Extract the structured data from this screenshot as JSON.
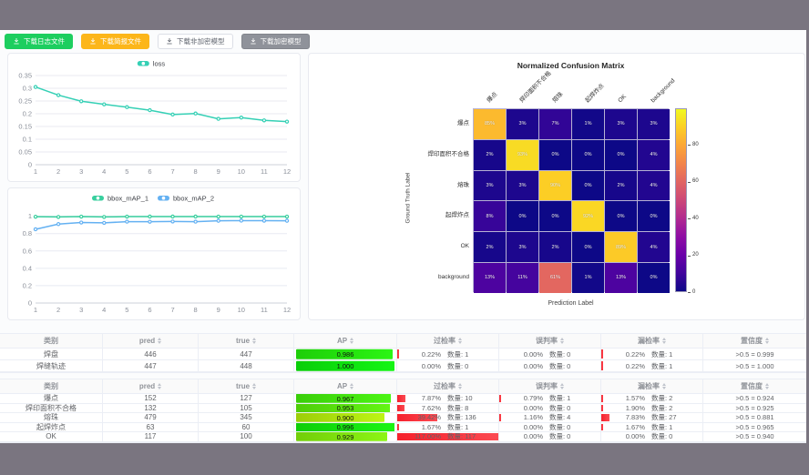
{
  "window": {
    "backdrop_color": "#7a7580",
    "content_bg": "#ffffff"
  },
  "toolbar": {
    "buttons": [
      {
        "name": "download-log-button",
        "label": "下载日志文件",
        "style": "success",
        "color": "#1dce5f",
        "icon": "download-icon"
      },
      {
        "name": "download-report-button",
        "label": "下载简报文件",
        "style": "warning",
        "color": "#fcb61a",
        "icon": "download-icon"
      },
      {
        "name": "download-unencrypted-model-button",
        "label": "下载非加密模型",
        "style": "plain",
        "color": "#ffffff",
        "icon": "download-icon"
      },
      {
        "name": "download-encrypted-model-button",
        "label": "下载加密模型",
        "style": "info",
        "color": "#8f929a",
        "icon": "download-icon"
      }
    ]
  },
  "chart_data": [
    {
      "type": "line",
      "title": "",
      "legend": [
        "loss"
      ],
      "legend_position": "top",
      "grid": true,
      "x": [
        1,
        2,
        3,
        4,
        5,
        6,
        7,
        8,
        9,
        10,
        11,
        12
      ],
      "series": [
        {
          "name": "loss",
          "color": "#35d0b5",
          "values": [
            0.305,
            0.273,
            0.249,
            0.237,
            0.226,
            0.214,
            0.197,
            0.201,
            0.18,
            0.185,
            0.174,
            0.169
          ]
        }
      ],
      "ylim": [
        0,
        0.35
      ],
      "y_ticks": [
        0,
        0.05,
        0.1,
        0.15,
        0.2,
        0.25,
        0.3,
        0.35
      ],
      "y_tick_labels": [
        "0",
        "0.05",
        "0.1",
        "0.15",
        "0.2",
        "0.25",
        "0.3",
        "0.35"
      ]
    },
    {
      "type": "line",
      "title": "",
      "legend": [
        "bbox_mAP_1",
        "bbox_mAP_2"
      ],
      "legend_position": "top",
      "grid": true,
      "x": [
        1,
        2,
        3,
        4,
        5,
        6,
        7,
        8,
        9,
        10,
        11,
        12
      ],
      "series": [
        {
          "name": "bbox_mAP_1",
          "color": "#38cf9e",
          "values": [
            0.995,
            0.992,
            0.996,
            0.992,
            0.996,
            0.997,
            0.997,
            0.997,
            0.996,
            0.996,
            0.996,
            0.996
          ]
        },
        {
          "name": "bbox_mAP_2",
          "color": "#64b1f2",
          "values": [
            0.85,
            0.91,
            0.928,
            0.924,
            0.938,
            0.937,
            0.94,
            0.938,
            0.948,
            0.95,
            0.949,
            0.948
          ]
        }
      ],
      "ylim": [
        0,
        1
      ],
      "y_ticks": [
        0,
        0.2,
        0.4,
        0.6,
        0.8,
        1
      ],
      "y_tick_labels": [
        "0",
        "0.2",
        "0.4",
        "0.6",
        "0.8",
        "1"
      ]
    },
    {
      "type": "heatmap",
      "title": "Normalized Confusion Matrix",
      "xlabel": "Prediction Label",
      "ylabel": "Ground Truth Label",
      "labels": [
        "爆点",
        "焊印面积不合格",
        "熔珠",
        "起焊炸点",
        "OK",
        "background"
      ],
      "values_percent": [
        [
          85,
          3,
          7,
          1,
          3,
          3
        ],
        [
          2,
          93,
          0,
          0,
          0,
          4
        ],
        [
          3,
          3,
          90,
          0,
          2,
          4
        ],
        [
          8,
          0,
          0,
          92,
          0,
          0
        ],
        [
          2,
          3,
          2,
          0,
          89,
          4
        ],
        [
          13,
          11,
          61,
          1,
          13,
          0
        ]
      ],
      "colormap": "plasma",
      "vmin": 0,
      "vmax": 100,
      "colorbar_ticks": [
        80,
        60,
        40,
        20,
        0
      ]
    }
  ],
  "tables": [
    {
      "headers": [
        {
          "key": "category",
          "label": "类别",
          "sortable": false
        },
        {
          "key": "pred",
          "label": "pred",
          "sortable": true
        },
        {
          "key": "true",
          "label": "true",
          "sortable": true
        },
        {
          "key": "ap",
          "label": "AP",
          "sortable": true
        },
        {
          "key": "over-rate",
          "label": "过检率",
          "sortable": true
        },
        {
          "key": "misjudge-rate",
          "label": "误判率",
          "sortable": true
        },
        {
          "key": "miss-rate",
          "label": "漏检率",
          "sortable": true
        },
        {
          "key": "confidence",
          "label": "置信度",
          "sortable": true
        }
      ],
      "rows": [
        {
          "name": "焊盘",
          "pred": "446",
          "true": "447",
          "ap": "0.986",
          "ap_value": 0.986,
          "over_rate": "0.22%",
          "over_count": "数量: 1",
          "over_value": 0.22,
          "mis_rate": "0.00%",
          "mis_count": "数量: 0",
          "mis_value": 0,
          "miss_rate": "0.22%",
          "miss_count": "数量: 1",
          "miss_value": 0.22,
          "confidence": ">0.5 = 0.999"
        },
        {
          "name": "焊缝轨迹",
          "pred": "447",
          "true": "448",
          "ap": "1.000",
          "ap_value": 1.0,
          "over_rate": "0.00%",
          "over_count": "数量: 0",
          "over_value": 0,
          "mis_rate": "0.00%",
          "mis_count": "数量: 0",
          "mis_value": 0,
          "miss_rate": "0.22%",
          "miss_count": "数量: 1",
          "miss_value": 0.22,
          "confidence": ">0.5 = 1.000"
        }
      ]
    },
    {
      "headers": [
        {
          "key": "category",
          "label": "类别",
          "sortable": false
        },
        {
          "key": "pred",
          "label": "pred",
          "sortable": true
        },
        {
          "key": "true",
          "label": "true",
          "sortable": true
        },
        {
          "key": "ap",
          "label": "AP",
          "sortable": true
        },
        {
          "key": "over-rate",
          "label": "过检率",
          "sortable": true
        },
        {
          "key": "misjudge-rate",
          "label": "误判率",
          "sortable": true
        },
        {
          "key": "miss-rate",
          "label": "漏检率",
          "sortable": true
        },
        {
          "key": "confidence",
          "label": "置信度",
          "sortable": true
        }
      ],
      "rows": [
        {
          "name": "爆点",
          "pred": "152",
          "true": "127",
          "ap": "0.967",
          "ap_value": 0.967,
          "over_rate": "7.87%",
          "over_count": "数量: 10",
          "over_value": 7.87,
          "mis_rate": "0.79%",
          "mis_count": "数量: 1",
          "mis_value": 0.79,
          "miss_rate": "1.57%",
          "miss_count": "数量: 2",
          "miss_value": 1.57,
          "confidence": ">0.5 = 0.924"
        },
        {
          "name": "焊印面积不合格",
          "pred": "132",
          "true": "105",
          "ap": "0.953",
          "ap_value": 0.953,
          "over_rate": "7.62%",
          "over_count": "数量: 8",
          "over_value": 7.62,
          "mis_rate": "0.00%",
          "mis_count": "数量: 0",
          "mis_value": 0,
          "miss_rate": "1.90%",
          "miss_count": "数量: 2",
          "miss_value": 1.9,
          "confidence": ">0.5 = 0.925"
        },
        {
          "name": "熔珠",
          "pred": "479",
          "true": "345",
          "ap": "0.900",
          "ap_value": 0.9,
          "over_rate": "39.42%",
          "over_count": "数量: 136",
          "over_value": 39.42,
          "mis_rate": "1.16%",
          "mis_count": "数量: 4",
          "mis_value": 1.16,
          "miss_rate": "7.83%",
          "miss_count": "数量: 27",
          "miss_value": 7.83,
          "confidence": ">0.5 = 0.881"
        },
        {
          "name": "起焊炸点",
          "pred": "63",
          "true": "60",
          "ap": "0.996",
          "ap_value": 0.996,
          "over_rate": "1.67%",
          "over_count": "数量: 1",
          "over_value": 1.67,
          "mis_rate": "0.00%",
          "mis_count": "数量: 0",
          "mis_value": 0,
          "miss_rate": "1.67%",
          "miss_count": "数量: 1",
          "miss_value": 1.67,
          "confidence": ">0.5 = 0.965"
        },
        {
          "name": "OK",
          "pred": "117",
          "true": "100",
          "ap": "0.929",
          "ap_value": 0.929,
          "over_rate": "117.00%",
          "over_count": "数量: 117",
          "over_value": 117,
          "mis_rate": "0.00%",
          "mis_count": "数量: 0",
          "mis_value": 0,
          "miss_rate": "0.00%",
          "miss_count": "数量: 0",
          "miss_value": 0,
          "confidence": ">0.5 = 0.940"
        }
      ]
    }
  ],
  "status_colors": {
    "ap_good": "#21e04a",
    "ap_mid": "#a8d41c",
    "rate_bad": "#f5212d"
  }
}
